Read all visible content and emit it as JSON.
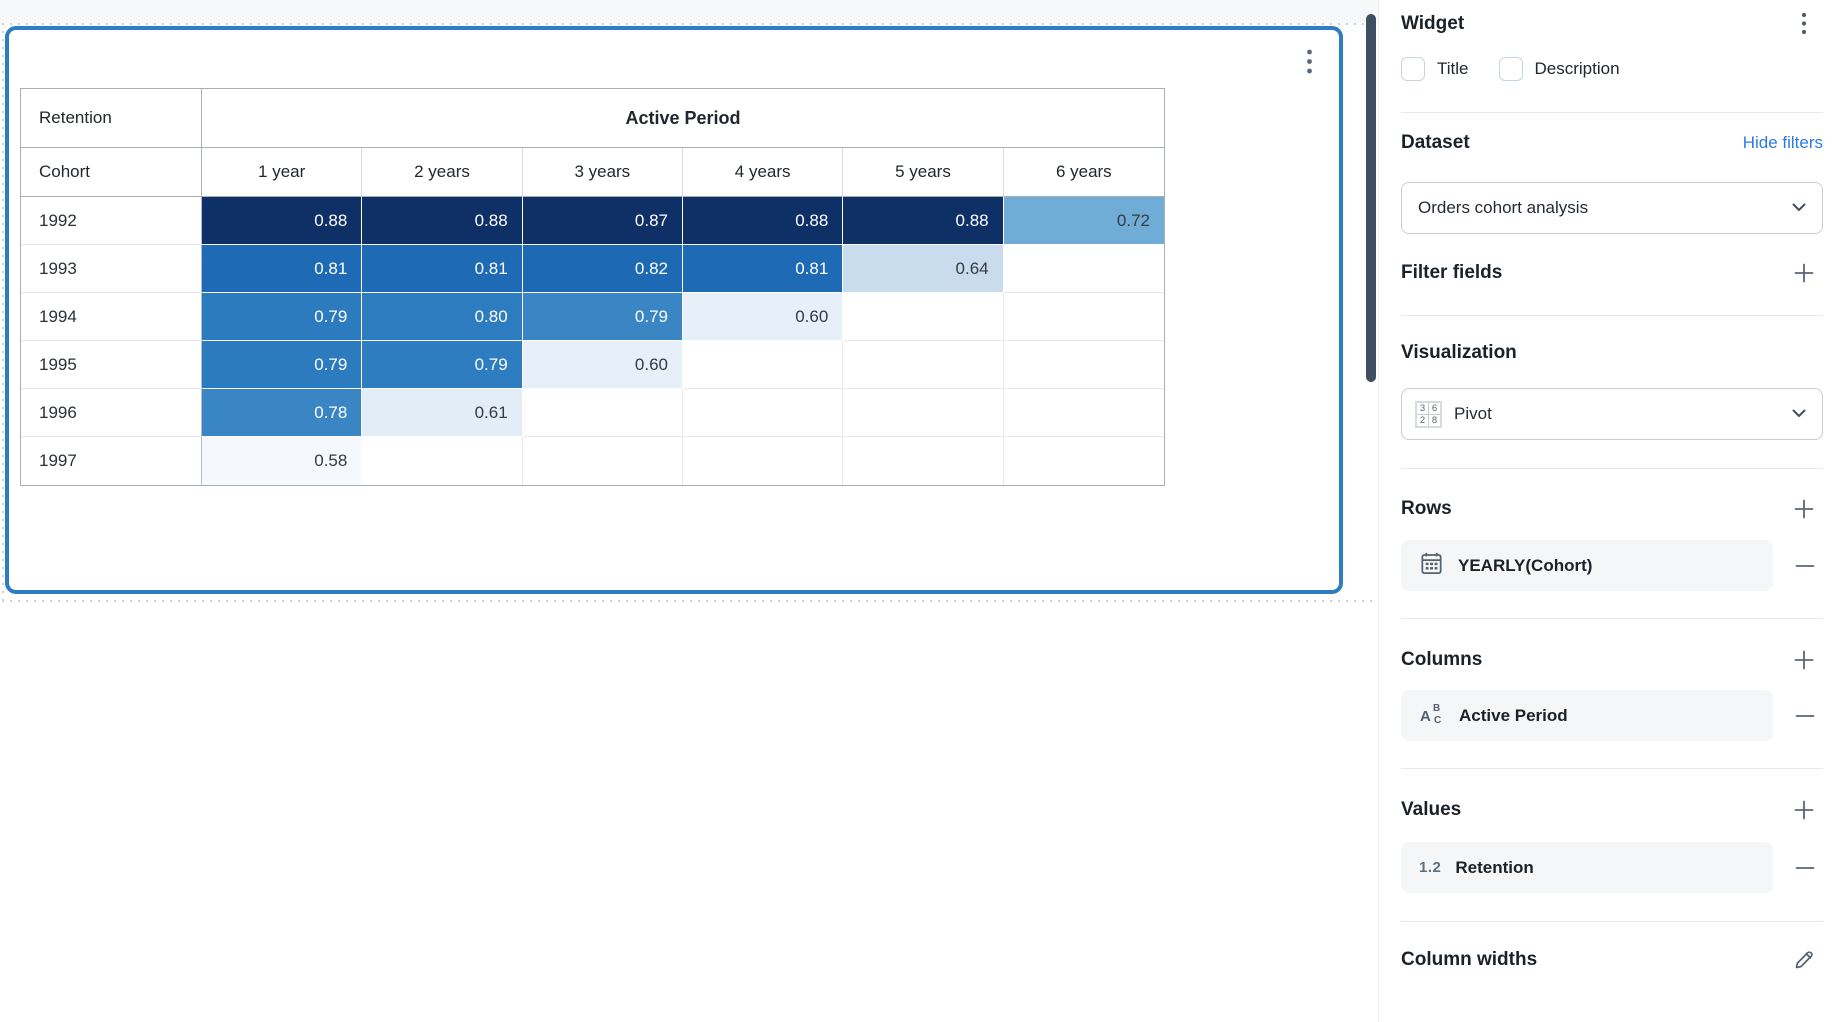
{
  "canvas": {
    "widget_menu": "kebab"
  },
  "pivot": {
    "corner_label": "Retention",
    "column_group_label": "Active Period",
    "row_header": "Cohort",
    "column_headers": [
      "1 year",
      "2 years",
      "3 years",
      "4 years",
      "5 years",
      "6 years"
    ],
    "rows": [
      {
        "cohort": "1992",
        "values": [
          "0.88",
          "0.88",
          "0.87",
          "0.88",
          "0.88",
          "0.72"
        ]
      },
      {
        "cohort": "1993",
        "values": [
          "0.81",
          "0.81",
          "0.82",
          "0.81",
          "0.64",
          ""
        ]
      },
      {
        "cohort": "1994",
        "values": [
          "0.79",
          "0.80",
          "0.79",
          "0.60",
          "",
          ""
        ]
      },
      {
        "cohort": "1995",
        "values": [
          "0.79",
          "0.79",
          "0.60",
          "",
          "",
          ""
        ]
      },
      {
        "cohort": "1996",
        "values": [
          "0.78",
          "0.61",
          "",
          "",
          "",
          ""
        ]
      },
      {
        "cohort": "1997",
        "values": [
          "0.58",
          "",
          "",
          "",
          "",
          ""
        ]
      }
    ],
    "cell_colors": [
      [
        "#0e3066",
        "#0e3066",
        "#0e3066",
        "#0e3066",
        "#0e3066",
        "#6fadd6"
      ],
      [
        "#1e6ab5",
        "#1e6ab5",
        "#1d69b4",
        "#1e6ab5",
        "#c8dcee",
        null
      ],
      [
        "#2c7bbe",
        "#2d7cbf",
        "#3a86c4",
        "#e7f0f8",
        null,
        null
      ],
      [
        "#2c7bbe",
        "#2e7dc0",
        "#e7f0f8",
        null,
        null,
        null
      ],
      [
        "#3a86c4",
        "#e3edf7",
        null,
        null,
        null,
        null
      ],
      [
        "#f5f9fd",
        null,
        null,
        null,
        null,
        null
      ]
    ],
    "white_text_threshold": 0.78
  },
  "chart_data": {
    "type": "heatmap",
    "title": "",
    "x_categories": [
      "1 year",
      "2 years",
      "3 years",
      "4 years",
      "5 years",
      "6 years"
    ],
    "y_categories": [
      "1992",
      "1993",
      "1994",
      "1995",
      "1996",
      "1997"
    ],
    "values": [
      [
        0.88,
        0.88,
        0.87,
        0.88,
        0.88,
        0.72
      ],
      [
        0.81,
        0.81,
        0.82,
        0.81,
        0.64,
        null
      ],
      [
        0.79,
        0.8,
        0.79,
        0.6,
        null,
        null
      ],
      [
        0.79,
        0.79,
        0.6,
        null,
        null,
        null
      ],
      [
        0.78,
        0.61,
        null,
        null,
        null,
        null
      ],
      [
        0.58,
        null,
        null,
        null,
        null,
        null
      ]
    ],
    "value_label": "Retention",
    "column_group_label": "Active Period",
    "row_label": "Cohort",
    "legend": "off",
    "grid": "on"
  },
  "sidebar": {
    "title": "Widget",
    "checkboxes": [
      {
        "label": "Title",
        "checked": false
      },
      {
        "label": "Description",
        "checked": false
      }
    ],
    "dataset": {
      "heading": "Dataset",
      "link": "Hide filters",
      "selected": "Orders cohort analysis"
    },
    "filter_fields": {
      "heading": "Filter fields"
    },
    "visualization": {
      "heading": "Visualization",
      "selected": "Pivot",
      "icon_numbers": [
        "3",
        "6",
        "2",
        "8"
      ]
    },
    "rows_section": {
      "heading": "Rows",
      "items": [
        {
          "label": "YEARLY(Cohort)",
          "icon": "calendar-icon"
        }
      ]
    },
    "columns_section": {
      "heading": "Columns",
      "items": [
        {
          "label": "Active Period",
          "icon": "abc-icon",
          "icon_letters": [
            "A",
            "B",
            "C"
          ]
        }
      ]
    },
    "values_section": {
      "heading": "Values",
      "items": [
        {
          "label": "Retention",
          "icon": "numeric-format-icon",
          "icon_text": "1.2"
        }
      ]
    },
    "column_widths": {
      "heading": "Column widths"
    }
  },
  "colors": {
    "selection_border": "#2e7cc3",
    "link_blue": "#2b7be0",
    "resize_handle": "#3f4e60",
    "heatmap_text_light": "#ffffff",
    "heatmap_text_dark": "#343b42"
  }
}
